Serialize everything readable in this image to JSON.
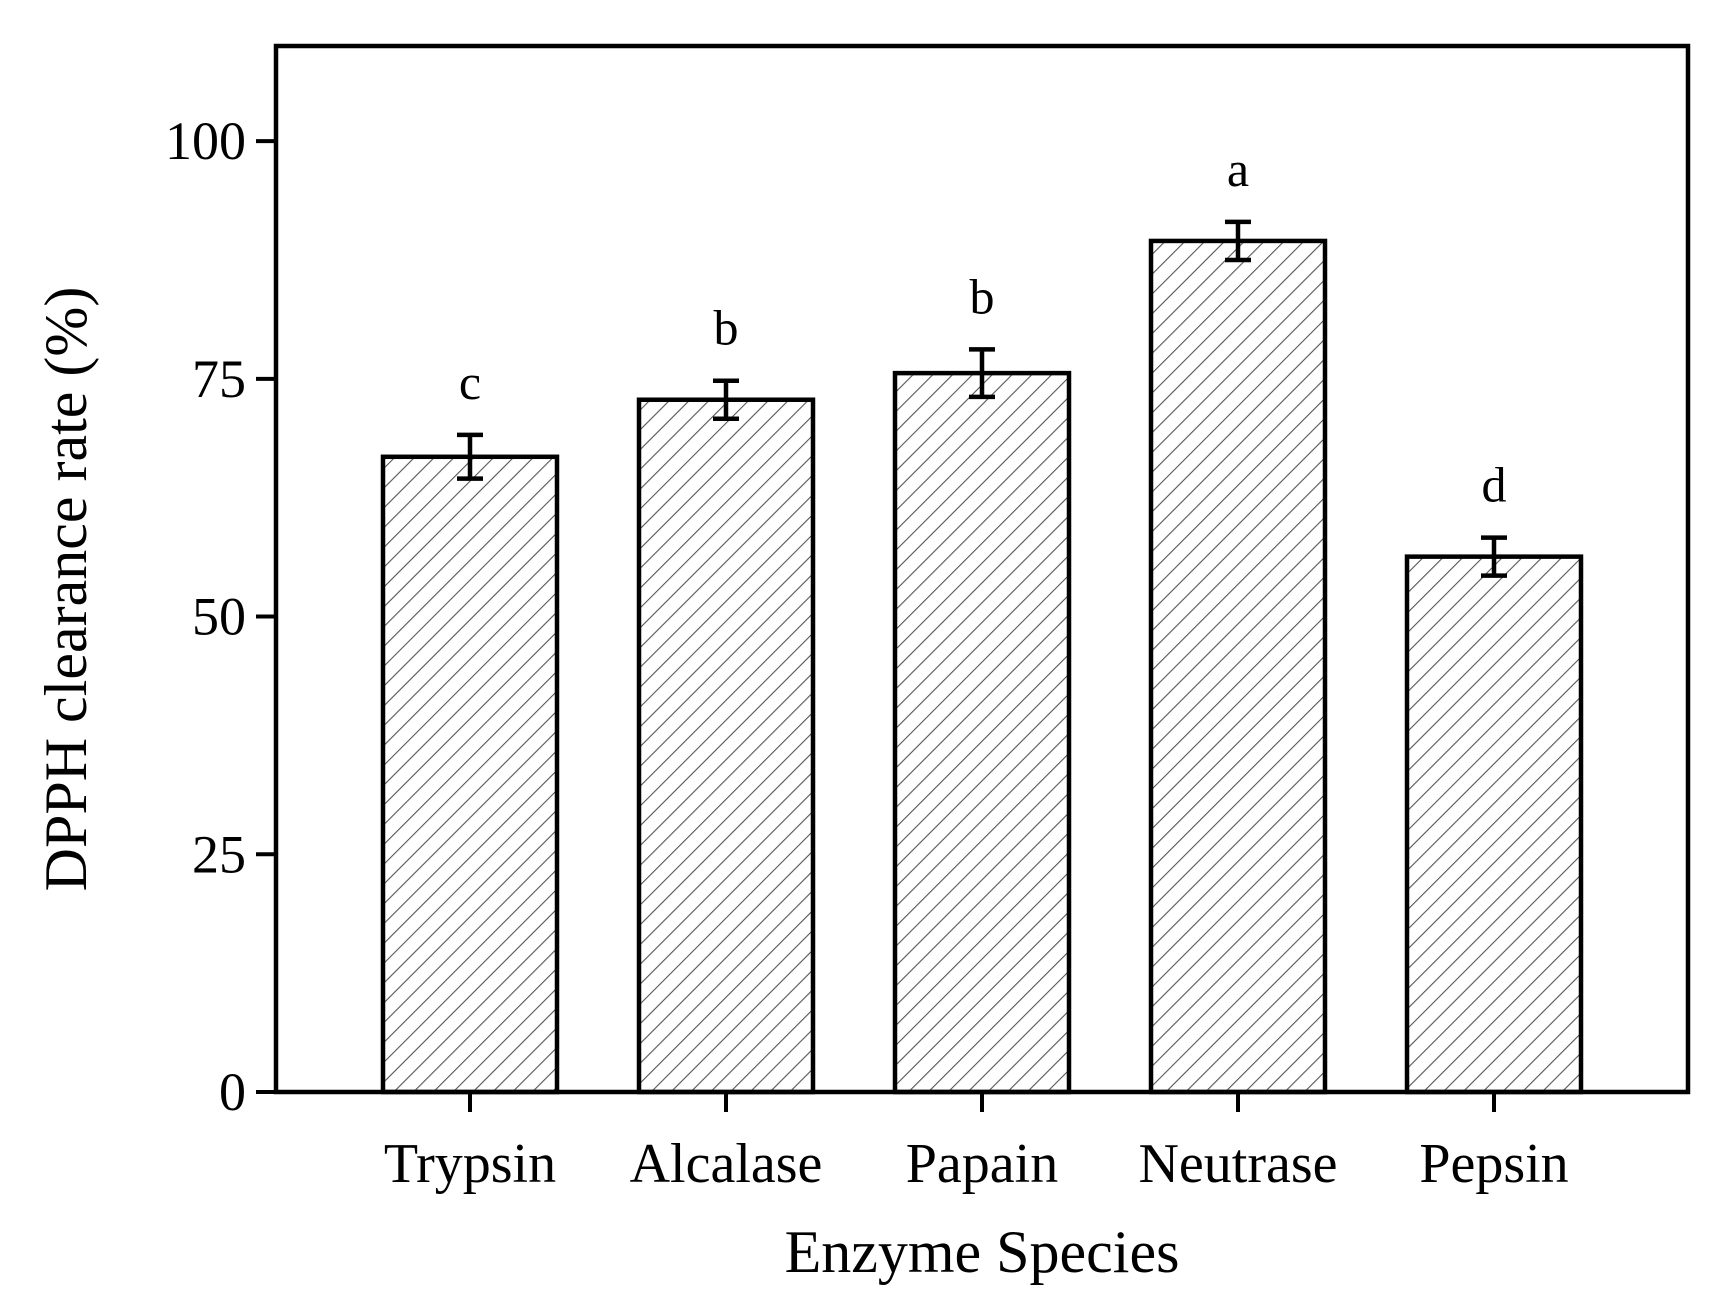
{
  "chart_data": {
    "type": "bar",
    "title": "",
    "xlabel": "Enzyme Species",
    "ylabel": "DPPH clearance rate (%)",
    "ylim": [
      0,
      110
    ],
    "yticks": [
      0,
      25,
      50,
      75,
      100
    ],
    "grid": false,
    "legend": "none",
    "categories": [
      "Trypsin",
      "Alcalase",
      "Papain",
      "Neutrase",
      "Pepsin"
    ],
    "values": [
      66.8,
      72.8,
      75.6,
      89.5,
      56.3
    ],
    "errors": [
      2.3,
      2.0,
      2.5,
      2.0,
      2.0
    ],
    "significance": [
      "c",
      "b",
      "b",
      "a",
      "d"
    ],
    "bar_fill": "hatched",
    "colors": {
      "bar_hatch": "#555555",
      "bar_background": "#ffffff",
      "axis": "#000000",
      "text": "#000000"
    }
  }
}
